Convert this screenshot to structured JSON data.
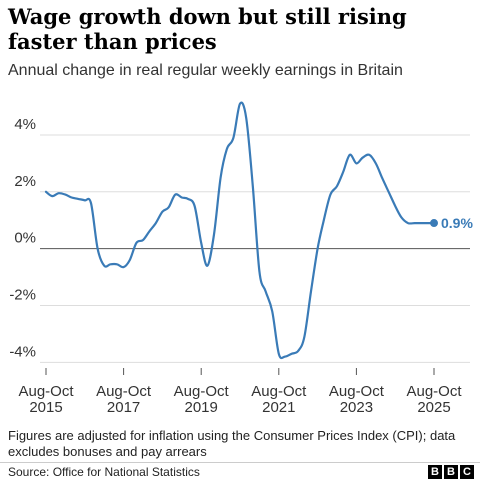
{
  "chart_data": {
    "type": "line",
    "title": "Wage growth down but still rising faster than prices",
    "subtitle": "Annual change in real regular weekly earnings in Britain",
    "x_tick_labels": [
      [
        "Aug-Oct",
        "2015"
      ],
      [
        "Aug-Oct",
        "2017"
      ],
      [
        "Aug-Oct",
        "2019"
      ],
      [
        "Aug-Oct",
        "2021"
      ],
      [
        "Aug-Oct",
        "2023"
      ],
      [
        "Aug-Oct",
        "2025"
      ]
    ],
    "x_ticks": [
      2015.67,
      2017.67,
      2019.67,
      2021.67,
      2023.67,
      2025.67
    ],
    "y_tick_labels": [
      "4%",
      "2%",
      "0%",
      "-2%",
      "-4%"
    ],
    "y_ticks": [
      4,
      2,
      0,
      -2,
      -4
    ],
    "xlim": [
      2015.67,
      2025.67
    ],
    "ylim": [
      -4.2,
      5.3
    ],
    "grid": true,
    "zero_line": true,
    "series": [
      {
        "color": "#3a7bb7",
        "x": [
          2015.67,
          2015.83,
          2016.0,
          2016.17,
          2016.33,
          2016.5,
          2016.67,
          2016.83,
          2017.0,
          2017.17,
          2017.33,
          2017.5,
          2017.67,
          2017.83,
          2018.0,
          2018.17,
          2018.33,
          2018.5,
          2018.67,
          2018.83,
          2019.0,
          2019.17,
          2019.33,
          2019.5,
          2019.67,
          2019.83,
          2020.0,
          2020.17,
          2020.33,
          2020.5,
          2020.67,
          2020.83,
          2021.0,
          2021.17,
          2021.33,
          2021.5,
          2021.67,
          2021.83,
          2022.0,
          2022.17,
          2022.33,
          2022.5,
          2022.67,
          2022.83,
          2023.0,
          2023.17,
          2023.33,
          2023.5,
          2023.67,
          2023.83,
          2024.0,
          2024.17,
          2024.33,
          2024.5,
          2024.67,
          2024.83,
          2025.0,
          2025.17,
          2025.33,
          2025.5,
          2025.67
        ],
        "y": [
          2.0,
          1.85,
          1.95,
          1.9,
          1.8,
          1.75,
          1.7,
          1.6,
          0.0,
          -0.6,
          -0.55,
          -0.55,
          -0.65,
          -0.4,
          0.2,
          0.3,
          0.6,
          0.9,
          1.3,
          1.45,
          1.9,
          1.8,
          1.75,
          1.5,
          0.2,
          -0.6,
          0.5,
          2.5,
          3.5,
          3.9,
          5.1,
          4.6,
          2.2,
          -0.8,
          -1.5,
          -2.2,
          -3.7,
          -3.8,
          -3.7,
          -3.6,
          -3.1,
          -1.5,
          0.0,
          1.0,
          1.9,
          2.2,
          2.7,
          3.3,
          3.0,
          3.2,
          3.3,
          3.0,
          2.5,
          2.0,
          1.5,
          1.1,
          0.9,
          0.9,
          0.9,
          0.9,
          0.9
        ],
        "end_label": "0.9%"
      }
    ]
  },
  "note": "Figures are adjusted for inflation using the Consumer Prices Index (CPI); data excludes bonuses and pay arrears",
  "source": "Source: Office for National Statistics",
  "logo": [
    "B",
    "B",
    "C"
  ]
}
